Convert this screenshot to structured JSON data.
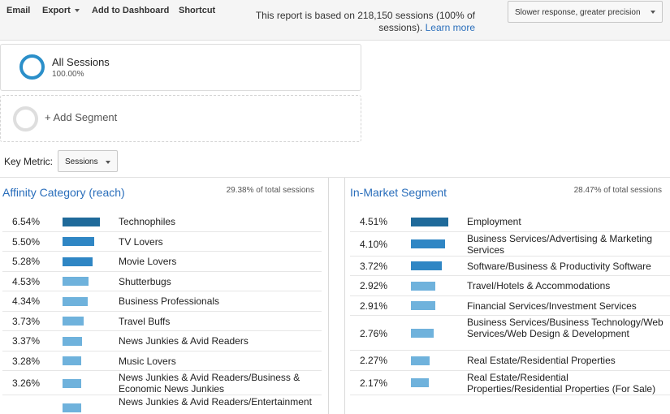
{
  "toolbar": {
    "email": "Email",
    "export": "Export",
    "add_to_dashboard": "Add to Dashboard",
    "shortcut": "Shortcut",
    "report_note": "This report is based on 218,150 sessions (100% of sessions).",
    "learn_more": "Learn more",
    "precision": "Slower response, greater precision"
  },
  "segments": {
    "all_sessions_title": "All Sessions",
    "all_sessions_pct": "100.00%",
    "add_segment": "+ Add Segment"
  },
  "key_metric": {
    "label": "Key Metric:",
    "value": "Sessions"
  },
  "colors": {
    "bar_dark": "#1f6a9a",
    "bar_mid": "#2f86c4",
    "bar_light": "#6fb2dc",
    "link": "#2a6ebb"
  },
  "affinity": {
    "title": "Affinity Category (reach)",
    "total": "29.38% of total sessions",
    "rows": [
      {
        "pct": "6.54%",
        "value": 6.54,
        "label": "Technophiles",
        "lines": 1
      },
      {
        "pct": "5.50%",
        "value": 5.5,
        "label": "TV Lovers",
        "lines": 1
      },
      {
        "pct": "5.28%",
        "value": 5.28,
        "label": "Movie Lovers",
        "lines": 1
      },
      {
        "pct": "4.53%",
        "value": 4.53,
        "label": "Shutterbugs",
        "lines": 1
      },
      {
        "pct": "4.34%",
        "value": 4.34,
        "label": "Business Professionals",
        "lines": 1
      },
      {
        "pct": "3.73%",
        "value": 3.73,
        "label": "Travel Buffs",
        "lines": 1
      },
      {
        "pct": "3.37%",
        "value": 3.37,
        "label": "News Junkies & Avid Readers",
        "lines": 1
      },
      {
        "pct": "3.28%",
        "value": 3.28,
        "label": "Music Lovers",
        "lines": 1
      },
      {
        "pct": "3.26%",
        "value": 3.26,
        "label": "News Junkies & Avid Readers/Business & Economic News Junkies",
        "lines": 2
      },
      {
        "pct": "",
        "value": 3.2,
        "label": "News Junkies & Avid Readers/Entertainment",
        "lines": 2
      }
    ]
  },
  "in_market": {
    "title": "In-Market Segment",
    "total": "28.47% of total sessions",
    "rows": [
      {
        "pct": "4.51%",
        "value": 4.51,
        "label": "Employment",
        "lines": 1
      },
      {
        "pct": "4.10%",
        "value": 4.1,
        "label": "Business Services/Advertising & Marketing Services",
        "lines": 2
      },
      {
        "pct": "3.72%",
        "value": 3.72,
        "label": "Software/Business & Productivity Software",
        "lines": 1
      },
      {
        "pct": "2.92%",
        "value": 2.92,
        "label": "Travel/Hotels & Accommodations",
        "lines": 1
      },
      {
        "pct": "2.91%",
        "value": 2.91,
        "label": "Financial Services/Investment Services",
        "lines": 1
      },
      {
        "pct": "2.76%",
        "value": 2.76,
        "label": "Business Services/Business Technology/Web Services/Web Design & Development",
        "lines": 3
      },
      {
        "pct": "2.27%",
        "value": 2.27,
        "label": "Real Estate/Residential Properties",
        "lines": 1
      },
      {
        "pct": "2.17%",
        "value": 2.17,
        "label": "Real Estate/Residential Properties/Residential Properties (For Sale)",
        "lines": 2
      }
    ]
  }
}
